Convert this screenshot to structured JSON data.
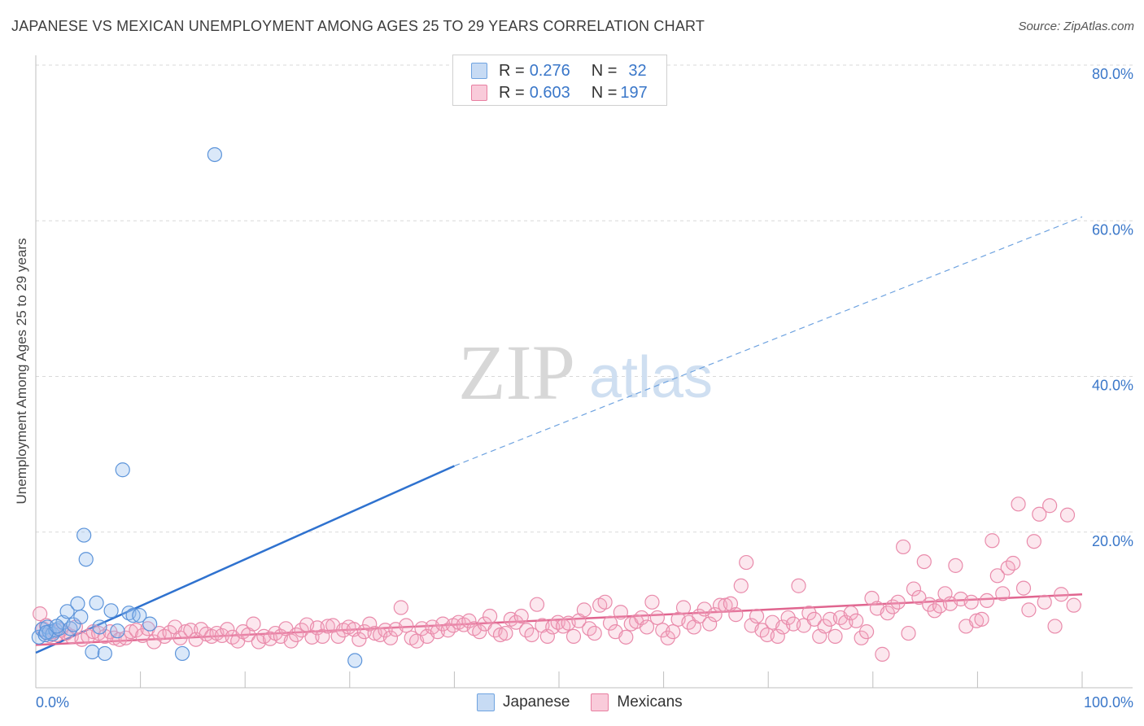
{
  "title": "JAPANESE VS MEXICAN UNEMPLOYMENT AMONG AGES 25 TO 29 YEARS CORRELATION CHART",
  "source": "Source: ZipAtlas.com",
  "watermark": {
    "zip": "ZIP",
    "atlas": "atlas"
  },
  "legend": {
    "japanese": {
      "r_label": "R = ",
      "r_value": "0.276",
      "n_label": "N = ",
      "n_value": "32",
      "color": "#6fa3e0"
    },
    "mexicans": {
      "r_label": "R = ",
      "r_value": "0.603",
      "n_label": "N = ",
      "n_value": "197",
      "color": "#e87fa1"
    }
  },
  "bottom_legend": {
    "japanese": "Japanese",
    "mexicans": "Mexicans"
  },
  "chart_data": {
    "type": "scatter",
    "title": "JAPANESE VS MEXICAN UNEMPLOYMENT AMONG AGES 25 TO 29 YEARS CORRELATION CHART",
    "xlabel": "",
    "ylabel": "Unemployment Among Ages 25 to 29 years",
    "xlim": [
      0,
      100
    ],
    "ylim": [
      0,
      80
    ],
    "x_tick_labels": [
      "0.0%",
      "100.0%"
    ],
    "y_ticks": [
      20,
      40,
      60,
      80
    ],
    "y_tick_labels": [
      "20.0%",
      "40.0%",
      "60.0%",
      "80.0%"
    ],
    "grid": true,
    "series": [
      {
        "name": "Japanese",
        "color": "#6fa3e0",
        "trend": {
          "x0": 0,
          "y0": 4.5,
          "x1": 40,
          "y1": 28.5,
          "dashed_to_x": 100,
          "dashed_to_y": 60.5
        },
        "points": [
          [
            0.3,
            6.5
          ],
          [
            0.6,
            7.5
          ],
          [
            0.9,
            6.8
          ],
          [
            1.1,
            7.8
          ],
          [
            1.3,
            7.2
          ],
          [
            1.6,
            6.9
          ],
          [
            1.9,
            7.4
          ],
          [
            2.2,
            7.6
          ],
          [
            2.6,
            8.4
          ],
          [
            3.0,
            9.8
          ],
          [
            3.3,
            7.6
          ],
          [
            3.6,
            8.1
          ],
          [
            4.0,
            10.8
          ],
          [
            4.3,
            9.1
          ],
          [
            4.6,
            19.6
          ],
          [
            4.8,
            16.5
          ],
          [
            5.4,
            4.6
          ],
          [
            5.8,
            10.9
          ],
          [
            6.1,
            7.8
          ],
          [
            6.6,
            4.4
          ],
          [
            7.2,
            9.9
          ],
          [
            7.8,
            7.3
          ],
          [
            8.3,
            28.0
          ],
          [
            8.9,
            9.6
          ],
          [
            9.3,
            9.3
          ],
          [
            9.9,
            9.3
          ],
          [
            10.9,
            8.2
          ],
          [
            14.0,
            4.4
          ],
          [
            17.1,
            68.5
          ],
          [
            30.5,
            3.5
          ],
          [
            1.0,
            7.1
          ],
          [
            2.0,
            7.9
          ]
        ]
      },
      {
        "name": "Mexicans",
        "color": "#e87fa1",
        "trend": {
          "x0": 0,
          "y0": 5.5,
          "x1": 100,
          "y1": 12.0
        },
        "points": [
          [
            0.4,
            9.5
          ],
          [
            0.7,
            7.6
          ],
          [
            1.0,
            8.0
          ],
          [
            1.3,
            6.7
          ],
          [
            1.7,
            7.2
          ],
          [
            2.0,
            6.8
          ],
          [
            2.4,
            7.4
          ],
          [
            2.9,
            7.0
          ],
          [
            3.4,
            6.6
          ],
          [
            3.8,
            7.8
          ],
          [
            4.4,
            6.2
          ],
          [
            5.0,
            6.6
          ],
          [
            5.5,
            7.2
          ],
          [
            6.0,
            7.0
          ],
          [
            6.6,
            6.6
          ],
          [
            7.1,
            7.2
          ],
          [
            7.5,
            6.4
          ],
          [
            8.0,
            6.2
          ],
          [
            8.6,
            6.4
          ],
          [
            9.1,
            7.2
          ],
          [
            9.6,
            7.4
          ],
          [
            10.2,
            6.7
          ],
          [
            10.7,
            7.6
          ],
          [
            11.3,
            5.9
          ],
          [
            11.8,
            7.0
          ],
          [
            12.3,
            6.6
          ],
          [
            12.8,
            7.1
          ],
          [
            13.3,
            7.8
          ],
          [
            13.8,
            6.4
          ],
          [
            14.3,
            7.2
          ],
          [
            14.8,
            7.4
          ],
          [
            15.3,
            6.2
          ],
          [
            15.8,
            7.5
          ],
          [
            16.3,
            6.9
          ],
          [
            16.8,
            6.6
          ],
          [
            17.3,
            7.0
          ],
          [
            17.8,
            6.7
          ],
          [
            18.3,
            7.5
          ],
          [
            18.8,
            6.5
          ],
          [
            19.3,
            6.0
          ],
          [
            19.8,
            7.2
          ],
          [
            20.3,
            6.8
          ],
          [
            20.8,
            8.2
          ],
          [
            21.3,
            5.9
          ],
          [
            21.8,
            6.6
          ],
          [
            22.4,
            6.3
          ],
          [
            22.9,
            7.0
          ],
          [
            23.4,
            6.6
          ],
          [
            23.9,
            7.6
          ],
          [
            24.4,
            6.0
          ],
          [
            24.9,
            6.8
          ],
          [
            25.4,
            7.4
          ],
          [
            25.9,
            8.1
          ],
          [
            26.4,
            6.5
          ],
          [
            26.9,
            7.7
          ],
          [
            27.4,
            6.6
          ],
          [
            27.9,
            7.9
          ],
          [
            28.4,
            8.0
          ],
          [
            28.9,
            6.6
          ],
          [
            29.4,
            7.4
          ],
          [
            29.9,
            7.8
          ],
          [
            30.4,
            7.5
          ],
          [
            30.9,
            6.2
          ],
          [
            31.4,
            7.2
          ],
          [
            31.9,
            8.2
          ],
          [
            32.4,
            7.0
          ],
          [
            32.9,
            6.8
          ],
          [
            33.4,
            7.4
          ],
          [
            33.9,
            6.4
          ],
          [
            34.4,
            7.5
          ],
          [
            34.9,
            10.3
          ],
          [
            35.4,
            8.0
          ],
          [
            35.9,
            6.4
          ],
          [
            36.4,
            6.0
          ],
          [
            36.9,
            7.6
          ],
          [
            37.4,
            6.6
          ],
          [
            37.9,
            7.8
          ],
          [
            38.4,
            7.2
          ],
          [
            38.9,
            8.2
          ],
          [
            39.4,
            7.4
          ],
          [
            39.9,
            8.0
          ],
          [
            40.4,
            8.4
          ],
          [
            40.9,
            8.1
          ],
          [
            41.4,
            8.6
          ],
          [
            41.9,
            7.6
          ],
          [
            42.4,
            7.2
          ],
          [
            42.9,
            8.2
          ],
          [
            43.4,
            9.2
          ],
          [
            43.9,
            7.4
          ],
          [
            44.4,
            6.8
          ],
          [
            44.9,
            7.0
          ],
          [
            45.4,
            8.8
          ],
          [
            45.9,
            8.4
          ],
          [
            46.4,
            9.2
          ],
          [
            46.9,
            7.4
          ],
          [
            47.4,
            6.8
          ],
          [
            47.9,
            10.7
          ],
          [
            48.4,
            8.0
          ],
          [
            48.9,
            6.6
          ],
          [
            49.4,
            7.8
          ],
          [
            49.9,
            8.4
          ],
          [
            50.4,
            7.9
          ],
          [
            50.9,
            8.3
          ],
          [
            51.4,
            6.6
          ],
          [
            51.9,
            8.6
          ],
          [
            52.4,
            10.0
          ],
          [
            52.9,
            7.6
          ],
          [
            53.4,
            7.0
          ],
          [
            53.9,
            10.6
          ],
          [
            54.4,
            11.0
          ],
          [
            54.9,
            8.3
          ],
          [
            55.4,
            7.2
          ],
          [
            55.9,
            9.7
          ],
          [
            56.4,
            6.5
          ],
          [
            56.9,
            8.2
          ],
          [
            57.4,
            8.5
          ],
          [
            57.9,
            9.0
          ],
          [
            58.4,
            7.8
          ],
          [
            58.9,
            11.0
          ],
          [
            59.4,
            9.0
          ],
          [
            59.9,
            7.4
          ],
          [
            60.4,
            6.4
          ],
          [
            60.9,
            7.2
          ],
          [
            61.4,
            8.8
          ],
          [
            61.9,
            10.3
          ],
          [
            62.4,
            8.4
          ],
          [
            62.9,
            7.8
          ],
          [
            63.4,
            9.2
          ],
          [
            63.9,
            10.1
          ],
          [
            64.4,
            8.2
          ],
          [
            64.9,
            9.4
          ],
          [
            65.4,
            10.6
          ],
          [
            65.9,
            10.6
          ],
          [
            66.4,
            10.8
          ],
          [
            66.9,
            9.4
          ],
          [
            67.4,
            13.1
          ],
          [
            67.9,
            16.1
          ],
          [
            68.4,
            8.0
          ],
          [
            68.9,
            9.2
          ],
          [
            69.4,
            7.4
          ],
          [
            69.9,
            6.8
          ],
          [
            70.4,
            8.4
          ],
          [
            70.9,
            6.6
          ],
          [
            71.4,
            7.8
          ],
          [
            71.9,
            9.0
          ],
          [
            72.4,
            8.2
          ],
          [
            72.9,
            13.1
          ],
          [
            73.4,
            8.0
          ],
          [
            73.9,
            9.6
          ],
          [
            74.4,
            8.8
          ],
          [
            74.9,
            6.6
          ],
          [
            75.4,
            7.9
          ],
          [
            75.9,
            8.8
          ],
          [
            76.4,
            6.6
          ],
          [
            76.9,
            9.0
          ],
          [
            77.4,
            8.4
          ],
          [
            77.9,
            9.6
          ],
          [
            78.4,
            8.6
          ],
          [
            78.9,
            6.4
          ],
          [
            79.4,
            7.2
          ],
          [
            79.9,
            11.5
          ],
          [
            80.4,
            10.2
          ],
          [
            80.9,
            4.3
          ],
          [
            81.4,
            9.6
          ],
          [
            81.9,
            10.4
          ],
          [
            82.4,
            11.0
          ],
          [
            82.9,
            18.1
          ],
          [
            83.4,
            7.0
          ],
          [
            83.9,
            12.7
          ],
          [
            84.4,
            11.6
          ],
          [
            84.9,
            16.2
          ],
          [
            85.4,
            10.7
          ],
          [
            85.9,
            9.9
          ],
          [
            86.4,
            10.5
          ],
          [
            86.9,
            12.1
          ],
          [
            87.4,
            10.8
          ],
          [
            87.9,
            15.7
          ],
          [
            88.4,
            11.4
          ],
          [
            88.9,
            7.9
          ],
          [
            89.4,
            11.0
          ],
          [
            89.9,
            8.6
          ],
          [
            90.4,
            8.8
          ],
          [
            90.9,
            11.2
          ],
          [
            91.4,
            18.9
          ],
          [
            91.9,
            14.4
          ],
          [
            92.4,
            12.1
          ],
          [
            92.9,
            15.4
          ],
          [
            93.4,
            16.0
          ],
          [
            93.9,
            23.6
          ],
          [
            94.4,
            12.8
          ],
          [
            94.9,
            10.0
          ],
          [
            95.4,
            18.8
          ],
          [
            95.9,
            22.3
          ],
          [
            96.4,
            11.0
          ],
          [
            96.9,
            23.4
          ],
          [
            97.4,
            7.9
          ],
          [
            98.0,
            12.0
          ],
          [
            98.6,
            22.2
          ],
          [
            99.2,
            10.6
          ]
        ]
      }
    ]
  }
}
